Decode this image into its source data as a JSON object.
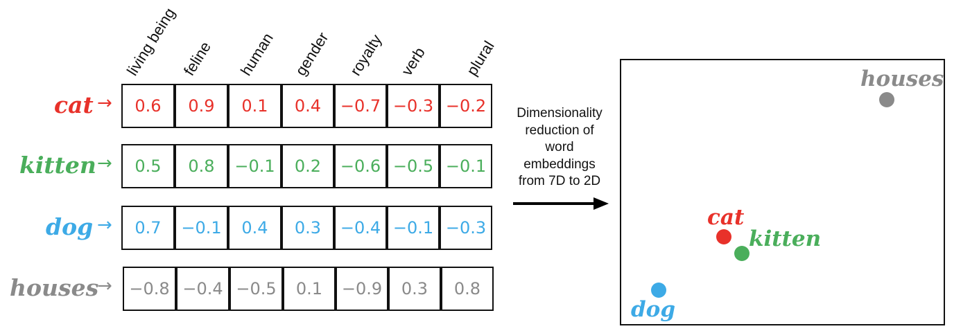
{
  "features": [
    "living being",
    "feline",
    "human",
    "gender",
    "royalty",
    "verb",
    "plural"
  ],
  "arrow_glyph": "→",
  "words": [
    {
      "name": "cat",
      "color": "#e8312a",
      "values": [
        "0.6",
        "0.9",
        "0.1",
        "0.4",
        "−0.7",
        "−0.3",
        "−0.2"
      ]
    },
    {
      "name": "kitten",
      "color": "#4aae5b",
      "values": [
        "0.5",
        "0.8",
        "−0.1",
        "0.2",
        "−0.6",
        "−0.5",
        "−0.1"
      ]
    },
    {
      "name": "dog",
      "color": "#3daae6",
      "values": [
        "0.7",
        "−0.1",
        "0.4",
        "0.3",
        "−0.4",
        "−0.1",
        "−0.3"
      ]
    },
    {
      "name": "houses",
      "color": "#8a8a8a",
      "values": [
        "−0.8",
        "−0.4",
        "−0.5",
        "0.1",
        "−0.9",
        "0.3",
        "0.8"
      ]
    }
  ],
  "caption_lines": [
    "Dimensionality",
    "reduction of",
    "word",
    "embeddings",
    "from 7D to 2D"
  ],
  "plot_points": [
    {
      "label": "houses",
      "color": "#8a8a8a"
    },
    {
      "label": "cat",
      "color": "#e8312a"
    },
    {
      "label": "kitten",
      "color": "#4aae5b"
    },
    {
      "label": "dog",
      "color": "#3daae6"
    }
  ]
}
